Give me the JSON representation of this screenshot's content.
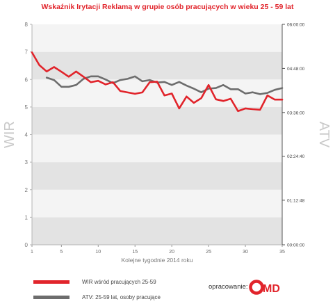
{
  "title": "Wskaźnik Irytacji Reklamą w grupie osób pracujących w wieku 25 - 59 lat",
  "legend": [
    {
      "label": "WIR wśród pracujących 25-59",
      "color": "#e1242b"
    },
    {
      "label": "ATV: 25-59 lat, osoby pracujące",
      "color": "#6d6d6d"
    }
  ],
  "credit": {
    "label": "opracowanie:",
    "logo_text": "OMD",
    "logo_color": "#e1242b",
    "logo_icon": "omd-logo-icon"
  },
  "chart_data": {
    "type": "line",
    "xlabel": "Kolejne tygodnie 2014 roku",
    "ylabel_left": "WIR",
    "ylabel_right": "ATV",
    "x_ticks": [
      "1",
      "5",
      "10",
      "15",
      "20",
      "25",
      "30",
      "35"
    ],
    "xlim": [
      1,
      35
    ],
    "ylim_left": [
      0,
      8
    ],
    "y_ticks_left": [
      "0",
      "1",
      "2",
      "3",
      "4",
      "5",
      "6",
      "7",
      "8"
    ],
    "y_ticks_right": [
      "00:00:00",
      "01:12:48",
      "02:24:40",
      "03:36:00",
      "04:48:00",
      "06:00:00"
    ],
    "grid": true,
    "series": [
      {
        "name": "WIR wśród pracujących 25-59",
        "axis": "left",
        "color": "#e1242b",
        "x": [
          1,
          2,
          3,
          4,
          5,
          6,
          7,
          8,
          9,
          10,
          11,
          12,
          13,
          14,
          15,
          16,
          17,
          18,
          19,
          20,
          21,
          22,
          23,
          24,
          25,
          26,
          27,
          28,
          29,
          30,
          31,
          32,
          33,
          34,
          35
        ],
        "values": [
          6.98,
          6.52,
          6.29,
          6.45,
          6.28,
          6.1,
          6.29,
          6.1,
          5.9,
          5.95,
          5.82,
          5.9,
          5.58,
          5.53,
          5.48,
          5.53,
          5.9,
          5.92,
          5.42,
          5.49,
          4.95,
          5.38,
          5.15,
          5.32,
          5.8,
          5.28,
          5.22,
          5.3,
          4.85,
          4.95,
          4.92,
          4.9,
          5.42,
          5.27,
          5.27
        ]
      },
      {
        "name": "ATV: 25-59 lat, osoby pracujące",
        "axis": "right",
        "color": "#6d6d6d",
        "x": [
          3,
          4,
          5,
          6,
          7,
          8,
          9,
          10,
          11,
          12,
          13,
          14,
          15,
          16,
          17,
          18,
          19,
          20,
          21,
          22,
          23,
          24,
          25,
          26,
          27,
          28,
          29,
          30,
          31,
          32,
          33,
          34,
          35
        ],
        "values": [
          "04:33:00",
          "04:29:00",
          "04:18:00",
          "04:18:00",
          "04:21:00",
          "04:31:00",
          "04:35:00",
          "04:35:00",
          "04:30:00",
          "04:24:00",
          "04:29:00",
          "04:31:00",
          "04:35:00",
          "04:27:00",
          "04:29:00",
          "04:25:00",
          "04:26:00",
          "04:21:00",
          "04:26:00",
          "04:20:00",
          "04:15:00",
          "04:09:00",
          "04:15:00",
          "04:16:00",
          "04:21:00",
          "04:14:00",
          "04:14:00",
          "04:07:00",
          "04:09:00",
          "04:06:00",
          "04:08:00",
          "04:13:00",
          "04:16:00"
        ]
      }
    ]
  }
}
